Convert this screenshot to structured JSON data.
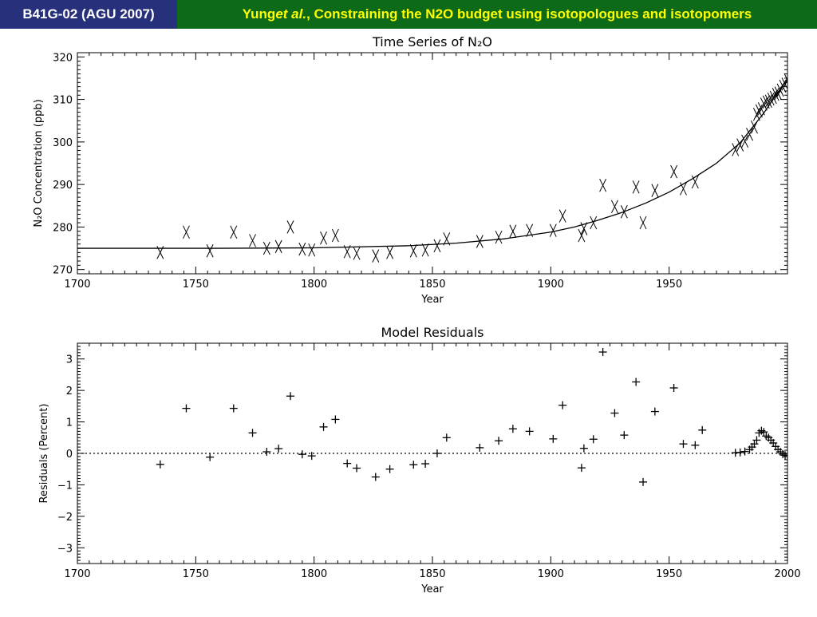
{
  "header": {
    "left_text": "B41G-02 (AGU 2007)",
    "right_prefix": "Yung ",
    "right_italic": "et al.",
    "right_suffix": ", Constraining the N2O budget using isotopologues and isotopomers",
    "left_bg": "#27307b",
    "left_fg": "#ffffff",
    "right_bg": "#0d6a18",
    "right_fg": "#ffff00"
  },
  "chart_data": [
    {
      "type": "scatter",
      "title": "Time Series of N₂O",
      "xlabel": "Year",
      "ylabel": "N₂O Concentration (ppb)",
      "xlim": [
        1700,
        2000
      ],
      "ylim": [
        269,
        321
      ],
      "xticks": [
        1700,
        1750,
        1800,
        1850,
        1900,
        1950
      ],
      "yticks": [
        270,
        280,
        290,
        300,
        310,
        320
      ],
      "marker": "x",
      "series": [
        {
          "x": [
            1735,
            1746,
            1756,
            1766,
            1774,
            1780,
            1785,
            1790,
            1795,
            1799,
            1804,
            1809,
            1814,
            1818,
            1826,
            1832,
            1842,
            1847,
            1852,
            1856,
            1870,
            1878,
            1884,
            1891,
            1901,
            1905,
            1913,
            1914,
            1918,
            1922,
            1927,
            1931,
            1936,
            1939,
            1944,
            1952,
            1956,
            1961,
            1978,
            1980,
            1982,
            1984,
            1986,
            1987,
            1988,
            1989,
            1990,
            1991,
            1992,
            1993,
            1994,
            1995,
            1996,
            1997,
            1998,
            1999,
            2000
          ],
          "y": [
            274,
            278.8,
            274.4,
            278.8,
            276.8,
            275,
            275.4,
            280,
            274.8,
            274.6,
            277.4,
            278,
            274.2,
            273.8,
            273.2,
            274,
            274.4,
            274.6,
            275.6,
            277.2,
            276.6,
            277.6,
            279,
            279.2,
            279.2,
            282.6,
            278,
            279.6,
            281,
            289.8,
            284.8,
            283.6,
            289.4,
            281,
            288.6,
            293,
            289,
            290.6,
            298.2,
            299.3,
            300.2,
            301.8,
            303.5,
            306.5,
            307.3,
            307.8,
            308.9,
            309.4,
            309.6,
            310.1,
            310.5,
            311.2,
            311.5,
            312.2,
            313.1,
            313.6,
            314.6
          ]
        }
      ],
      "fit_curve": {
        "x": [
          1700,
          1760,
          1800,
          1840,
          1860,
          1880,
          1900,
          1910,
          1920,
          1930,
          1940,
          1950,
          1960,
          1970,
          1980,
          1990,
          2000
        ],
        "y": [
          275,
          275,
          275.1,
          275.6,
          276.2,
          277.2,
          278.8,
          280,
          281.6,
          283.4,
          285.6,
          288.2,
          291.4,
          295,
          299.8,
          306.8,
          315
        ]
      }
    },
    {
      "type": "scatter",
      "title": "Model Residuals",
      "xlabel": "Year",
      "ylabel": "Residuals (Percent)",
      "xlim": [
        1700,
        2000
      ],
      "ylim": [
        -3.5,
        3.5
      ],
      "xticks": [
        1700,
        1750,
        1800,
        1850,
        1900,
        1950,
        2000
      ],
      "yticks": [
        -3,
        -2,
        -1,
        0,
        1,
        2,
        3
      ],
      "marker": "+",
      "reference_line": 0,
      "series": [
        {
          "x": [
            1735,
            1746,
            1756,
            1766,
            1774,
            1780,
            1785,
            1790,
            1795,
            1799,
            1804,
            1809,
            1814,
            1818,
            1826,
            1832,
            1842,
            1847,
            1852,
            1856,
            1870,
            1878,
            1884,
            1891,
            1901,
            1905,
            1913,
            1914,
            1918,
            1922,
            1927,
            1931,
            1936,
            1939,
            1944,
            1952,
            1956,
            1961,
            1964,
            1978,
            1980,
            1982,
            1984,
            1985,
            1986,
            1987,
            1988,
            1989,
            1990,
            1991,
            1992,
            1993,
            1994,
            1995,
            1996,
            1997,
            1998,
            1999,
            2000
          ],
          "y": [
            -0.35,
            1.43,
            -0.12,
            1.43,
            0.65,
            0.05,
            0.15,
            1.82,
            -0.03,
            -0.08,
            0.84,
            1.08,
            -0.32,
            -0.47,
            -0.75,
            -0.5,
            -0.36,
            -0.33,
            0.0,
            0.5,
            0.18,
            0.4,
            0.78,
            0.7,
            0.46,
            1.53,
            -0.46,
            0.16,
            0.45,
            3.22,
            1.28,
            0.58,
            2.27,
            -0.91,
            1.33,
            2.08,
            0.3,
            0.26,
            0.74,
            0.02,
            0.03,
            0.06,
            0.12,
            0.2,
            0.3,
            0.42,
            0.65,
            0.72,
            0.68,
            0.55,
            0.5,
            0.42,
            0.33,
            0.22,
            0.12,
            0.05,
            -0.02,
            -0.06,
            -0.1
          ]
        }
      ]
    }
  ]
}
